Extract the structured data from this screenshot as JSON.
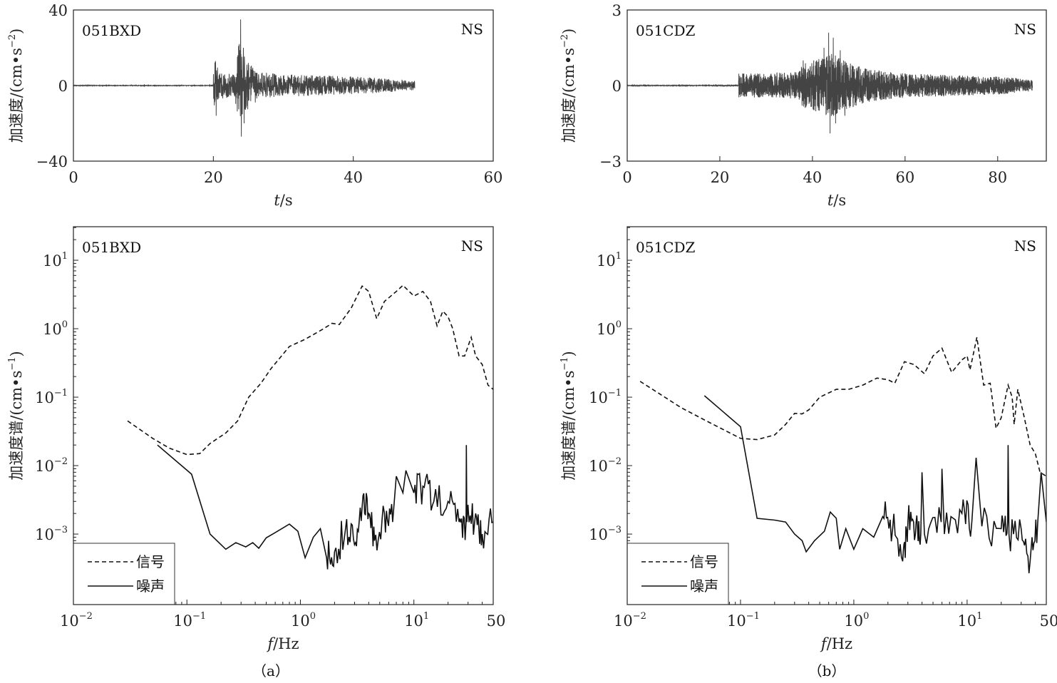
{
  "figure": {
    "captions": [
      "（a）",
      "（b）"
    ]
  },
  "chart_data": [
    {
      "type": "line",
      "panel": "a-top",
      "station": "051BXD",
      "component": "NS",
      "xlabel": {
        "italic": "t",
        "rest": "/s"
      },
      "ylabel": {
        "main": "加速度/(cm•s",
        "sup": "−2",
        "close": ")"
      },
      "xlim": [
        0,
        60
      ],
      "ylim": [
        -40,
        40
      ],
      "xticks": [
        "0",
        "20",
        "40",
        "60"
      ],
      "xtick_values": [
        0,
        20,
        40,
        60
      ],
      "yticks": [
        "40",
        "0",
        "−40"
      ],
      "ytick_values": [
        40,
        0,
        -40
      ],
      "series": [
        {
          "name": "acceleration",
          "color": "#444444",
          "onset": 20.0,
          "end": 48.8,
          "envelope": [
            [
              20.0,
              6
            ],
            [
              20.3,
              12
            ],
            [
              20.8,
              6
            ],
            [
              23.0,
              5
            ],
            [
              23.6,
              18
            ],
            [
              24.5,
              14
            ],
            [
              25.0,
              10
            ],
            [
              26.5,
              6
            ],
            [
              30,
              5
            ],
            [
              35,
              4.5
            ],
            [
              40,
              4
            ],
            [
              45,
              3
            ],
            [
              48.8,
              2
            ]
          ],
          "peaks": [
            [
              20.3,
              13
            ],
            [
              20.4,
              -16
            ],
            [
              23.7,
              22
            ],
            [
              23.9,
              35
            ],
            [
              24.0,
              -27
            ],
            [
              24.3,
              20
            ],
            [
              24.4,
              -20
            ],
            [
              25.0,
              12
            ],
            [
              26.0,
              -9
            ]
          ]
        }
      ]
    },
    {
      "type": "line",
      "panel": "b-top",
      "station": "051CDZ",
      "component": "NS",
      "xlabel": {
        "italic": "t",
        "rest": "/s"
      },
      "ylabel": {
        "main": "加速度/(cm•s",
        "sup": "−2",
        "close": ")"
      },
      "xlim": [
        0,
        90.5
      ],
      "ylim": [
        -3,
        3
      ],
      "xticks": [
        "0",
        "20",
        "40",
        "60",
        "80"
      ],
      "xtick_values": [
        0,
        20,
        40,
        60,
        80
      ],
      "yticks": [
        "3",
        "0",
        "−3"
      ],
      "ytick_values": [
        3,
        0,
        -3
      ],
      "series": [
        {
          "name": "acceleration",
          "color": "#444444",
          "onset": 24.0,
          "end": 87.5,
          "envelope": [
            [
              0,
              0.02
            ],
            [
              24.0,
              0.4
            ],
            [
              30,
              0.4
            ],
            [
              37,
              0.45
            ],
            [
              38,
              0.75
            ],
            [
              42,
              0.9
            ],
            [
              44,
              1.1
            ],
            [
              47,
              0.8
            ],
            [
              52,
              0.55
            ],
            [
              60,
              0.4
            ],
            [
              70,
              0.35
            ],
            [
              80,
              0.3
            ],
            [
              87.5,
              0.2
            ]
          ],
          "peaks": [
            [
              38.0,
              1.0
            ],
            [
              42.5,
              1.5
            ],
            [
              43.5,
              2.1
            ],
            [
              43.8,
              -1.9
            ],
            [
              44.5,
              1.9
            ],
            [
              45.0,
              -1.5
            ],
            [
              46.0,
              1.4
            ],
            [
              47.0,
              -1.2
            ]
          ]
        }
      ]
    },
    {
      "type": "line",
      "panel": "a-bottom",
      "station": "051BXD",
      "component": "NS",
      "xscale": "log",
      "yscale": "log",
      "xlabel": {
        "italic": "f",
        "rest": "/Hz"
      },
      "ylabel": {
        "main": "加速度谱/(cm•s",
        "sup": "−1",
        "close": ")"
      },
      "xlim": [
        0.01,
        50
      ],
      "ylim": [
        9.33e-05,
        30.9
      ],
      "xticks": [
        {
          "base": "10",
          "exp": "−2"
        },
        {
          "base": "10",
          "exp": "−1"
        },
        {
          "base": "10",
          "exp": "0"
        },
        {
          "base": "10",
          "exp": "1"
        },
        {
          "base": "50",
          "exp": ""
        }
      ],
      "xtick_values": [
        0.01,
        0.1,
        1,
        10,
        50
      ],
      "yticks": [
        {
          "base": "10",
          "exp": "1"
        },
        {
          "base": "10",
          "exp": "0"
        },
        {
          "base": "10",
          "exp": "−1"
        },
        {
          "base": "10",
          "exp": "−2"
        },
        {
          "base": "10",
          "exp": "−3"
        }
      ],
      "ytick_values": [
        10,
        1,
        0.1,
        0.01,
        0.001
      ],
      "legend": {
        "location": "lower-left",
        "entries": [
          "信号",
          "噪声"
        ]
      },
      "series": [
        {
          "name": "信号",
          "style": "dashed",
          "jitter": false,
          "points": [
            [
              0.03,
              0.045
            ],
            [
              0.05,
              0.025
            ],
            [
              0.07,
              0.018
            ],
            [
              0.1,
              0.0145
            ],
            [
              0.13,
              0.015
            ],
            [
              0.16,
              0.021
            ],
            [
              0.22,
              0.03
            ],
            [
              0.28,
              0.045
            ],
            [
              0.35,
              0.1
            ],
            [
              0.45,
              0.16
            ],
            [
              0.55,
              0.26
            ],
            [
              0.8,
              0.55
            ],
            [
              1.1,
              0.7
            ],
            [
              1.6,
              1.0
            ],
            [
              1.9,
              1.2
            ],
            [
              2.2,
              1.15
            ],
            [
              2.8,
              2.0
            ],
            [
              3.5,
              4.2
            ],
            [
              4.0,
              3.5
            ],
            [
              4.7,
              1.4
            ],
            [
              5.5,
              2.5
            ],
            [
              7.0,
              3.5
            ],
            [
              8.0,
              4.3
            ],
            [
              10,
              3.0
            ],
            [
              12,
              3.5
            ],
            [
              14,
              2.5
            ],
            [
              16,
              1.1
            ],
            [
              18,
              1.8
            ],
            [
              20,
              1.5
            ],
            [
              22,
              1.0
            ],
            [
              25,
              0.4
            ],
            [
              28,
              0.4
            ],
            [
              32,
              0.75
            ],
            [
              35,
              0.4
            ],
            [
              40,
              0.3
            ],
            [
              45,
              0.15
            ],
            [
              50,
              0.13
            ]
          ]
        },
        {
          "name": "噪声",
          "style": "solid",
          "jitter": true,
          "points": [
            [
              0.055,
              0.02
            ],
            [
              0.11,
              0.0075
            ],
            [
              0.16,
              0.001
            ],
            [
              0.22,
              0.0006
            ],
            [
              0.27,
              0.00075
            ],
            [
              0.33,
              0.00065
            ],
            [
              0.38,
              0.00075
            ],
            [
              0.43,
              0.00062
            ],
            [
              0.5,
              0.00088
            ],
            [
              0.6,
              0.00105
            ],
            [
              0.8,
              0.0014
            ],
            [
              0.95,
              0.0011
            ],
            [
              1.1,
              0.00045
            ],
            [
              1.3,
              0.0009
            ],
            [
              1.5,
              0.0012
            ],
            [
              1.7,
              0.00045
            ],
            [
              2.0,
              0.00055
            ],
            [
              2.5,
              0.0012
            ],
            [
              3.0,
              0.0007
            ],
            [
              3.5,
              0.0025
            ],
            [
              4.0,
              0.002
            ],
            [
              4.5,
              0.0008
            ],
            [
              5.5,
              0.002
            ],
            [
              6.5,
              0.0015
            ],
            [
              7.0,
              0.007
            ],
            [
              8.0,
              0.004
            ],
            [
              8.5,
              0.0085
            ],
            [
              10,
              0.004
            ],
            [
              12,
              0.005
            ],
            [
              15,
              0.003
            ],
            [
              20,
              0.003
            ],
            [
              25,
              0.0015
            ],
            [
              28.8,
              0.0015
            ],
            [
              29,
              0.02
            ],
            [
              29.3,
              0.0015
            ],
            [
              35,
              0.002
            ],
            [
              40,
              0.001
            ],
            [
              50,
              0.0015
            ]
          ]
        }
      ]
    },
    {
      "type": "line",
      "panel": "b-bottom",
      "station": "051CDZ",
      "component": "NS",
      "xscale": "log",
      "yscale": "log",
      "xlabel": {
        "italic": "f",
        "rest": "/Hz"
      },
      "ylabel": {
        "main": "加速度谱/(cm•s",
        "sup": "−1",
        "close": ")"
      },
      "xlim": [
        0.01,
        50
      ],
      "ylim": [
        9.33e-05,
        30.9
      ],
      "xticks": [
        {
          "base": "10",
          "exp": "−2"
        },
        {
          "base": "10",
          "exp": "−1"
        },
        {
          "base": "10",
          "exp": "0"
        },
        {
          "base": "10",
          "exp": "1"
        },
        {
          "base": "50",
          "exp": ""
        }
      ],
      "xtick_values": [
        0.01,
        0.1,
        1,
        10,
        50
      ],
      "yticks": [
        {
          "base": "10",
          "exp": "1"
        },
        {
          "base": "10",
          "exp": "0"
        },
        {
          "base": "10",
          "exp": "−1"
        },
        {
          "base": "10",
          "exp": "−2"
        },
        {
          "base": "10",
          "exp": "−3"
        }
      ],
      "ytick_values": [
        10,
        1,
        0.1,
        0.01,
        0.001
      ],
      "legend": {
        "location": "lower-left",
        "entries": [
          "信号",
          "噪声"
        ]
      },
      "series": [
        {
          "name": "信号",
          "style": "dashed",
          "jitter": false,
          "points": [
            [
              0.013,
              0.17
            ],
            [
              0.03,
              0.07
            ],
            [
              0.05,
              0.045
            ],
            [
              0.1,
              0.025
            ],
            [
              0.14,
              0.024
            ],
            [
              0.2,
              0.028
            ],
            [
              0.25,
              0.04
            ],
            [
              0.3,
              0.058
            ],
            [
              0.35,
              0.057
            ],
            [
              0.4,
              0.065
            ],
            [
              0.5,
              0.1
            ],
            [
              0.7,
              0.13
            ],
            [
              0.9,
              0.13
            ],
            [
              1.2,
              0.15
            ],
            [
              1.6,
              0.19
            ],
            [
              2.0,
              0.18
            ],
            [
              2.3,
              0.16
            ],
            [
              2.8,
              0.33
            ],
            [
              3.4,
              0.3
            ],
            [
              4.2,
              0.22
            ],
            [
              5.0,
              0.4
            ],
            [
              6.0,
              0.52
            ],
            [
              7.3,
              0.23
            ],
            [
              9.0,
              0.35
            ],
            [
              10,
              0.4
            ],
            [
              10.6,
              0.25
            ],
            [
              12.2,
              0.75
            ],
            [
              14,
              0.15
            ],
            [
              16,
              0.16
            ],
            [
              18,
              0.035
            ],
            [
              20,
              0.05
            ],
            [
              23,
              0.15
            ],
            [
              25,
              0.1
            ],
            [
              26,
              0.04
            ],
            [
              28,
              0.13
            ],
            [
              32,
              0.05
            ],
            [
              36,
              0.02
            ],
            [
              40,
              0.015
            ],
            [
              44,
              0.008
            ],
            [
              50,
              0.007
            ]
          ]
        },
        {
          "name": "噪声",
          "style": "solid",
          "jitter": true,
          "points": [
            [
              0.048,
              0.105
            ],
            [
              0.1,
              0.037
            ],
            [
              0.14,
              0.0017
            ],
            [
              0.2,
              0.0016
            ],
            [
              0.25,
              0.0015
            ],
            [
              0.3,
              0.001
            ],
            [
              0.35,
              0.0008
            ],
            [
              0.38,
              0.00055
            ],
            [
              0.45,
              0.0008
            ],
            [
              0.55,
              0.0011
            ],
            [
              0.62,
              0.0021
            ],
            [
              0.7,
              0.0017
            ],
            [
              0.75,
              0.0006
            ],
            [
              0.85,
              0.0012
            ],
            [
              1.0,
              0.0006
            ],
            [
              1.2,
              0.0012
            ],
            [
              1.5,
              0.0009
            ],
            [
              1.8,
              0.0018
            ],
            [
              2.2,
              0.0012
            ],
            [
              2.7,
              0.0004
            ],
            [
              3.0,
              0.0015
            ],
            [
              3.5,
              0.001
            ],
            [
              3.9,
              0.001
            ],
            [
              4.0,
              0.008
            ],
            [
              4.2,
              0.001
            ],
            [
              5.9,
              0.0015
            ],
            [
              6.0,
              0.009
            ],
            [
              6.3,
              0.001
            ],
            [
              9.0,
              0.002
            ],
            [
              11,
              0.0015
            ],
            [
              12,
              0.013
            ],
            [
              13.5,
              0.0013
            ],
            [
              20,
              0.0012
            ],
            [
              22.8,
              0.0015
            ],
            [
              23,
              0.02
            ],
            [
              23.4,
              0.001
            ],
            [
              30,
              0.0012
            ],
            [
              36,
              0.0004
            ],
            [
              42,
              0.0015
            ],
            [
              45,
              0.008
            ],
            [
              50,
              0.0015
            ]
          ]
        }
      ]
    }
  ]
}
